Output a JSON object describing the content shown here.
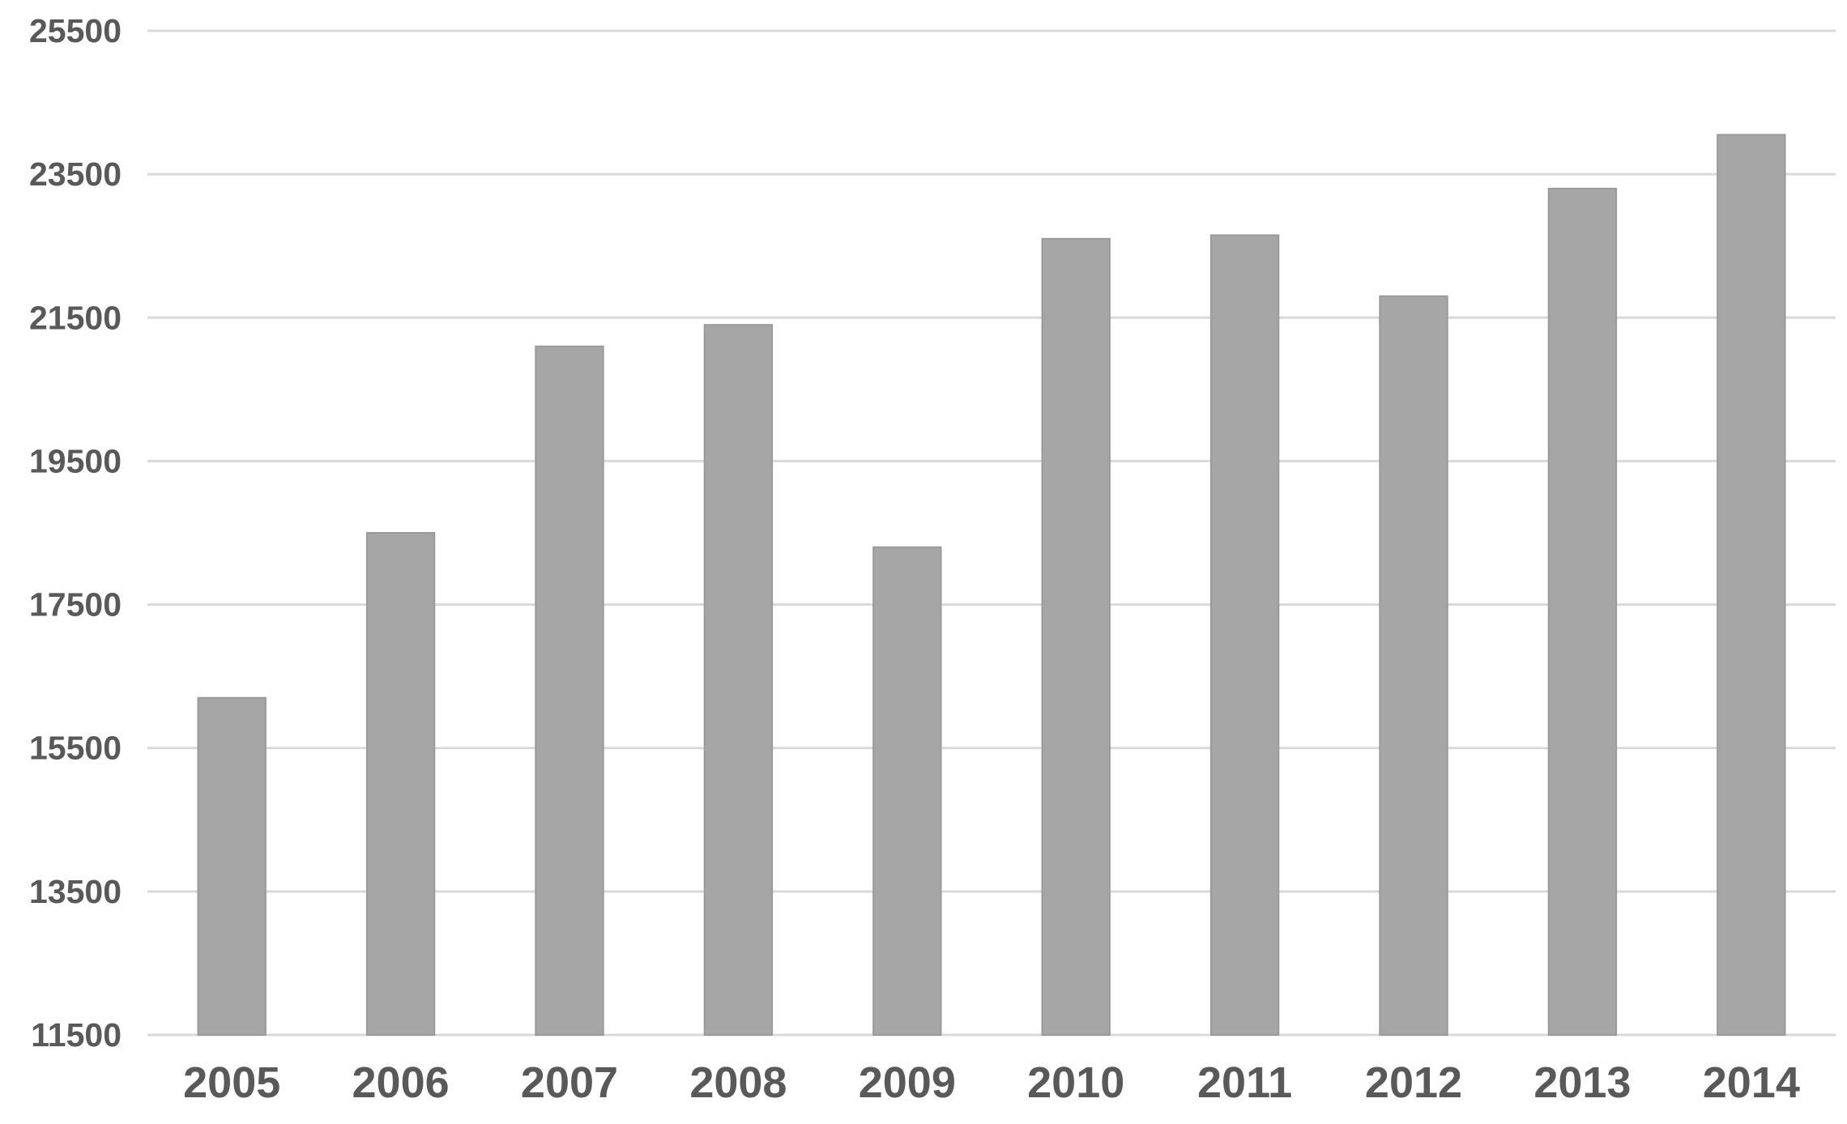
{
  "chart_data": {
    "type": "bar",
    "title": "",
    "xlabel": "",
    "ylabel": "",
    "categories": [
      "2005",
      "2006",
      "2007",
      "2008",
      "2009",
      "2010",
      "2011",
      "2012",
      "2013",
      "2014"
    ],
    "values": [
      16200,
      18500,
      21100,
      21400,
      18300,
      22600,
      22650,
      21800,
      23300,
      24050
    ],
    "ylim": [
      11500,
      25500
    ],
    "y_ticks": [
      "11500",
      "13500",
      "15500",
      "17500",
      "19500",
      "21500",
      "23500",
      "25500"
    ],
    "grid": true,
    "legend": "none",
    "bar_color": "#a6a6a6"
  }
}
